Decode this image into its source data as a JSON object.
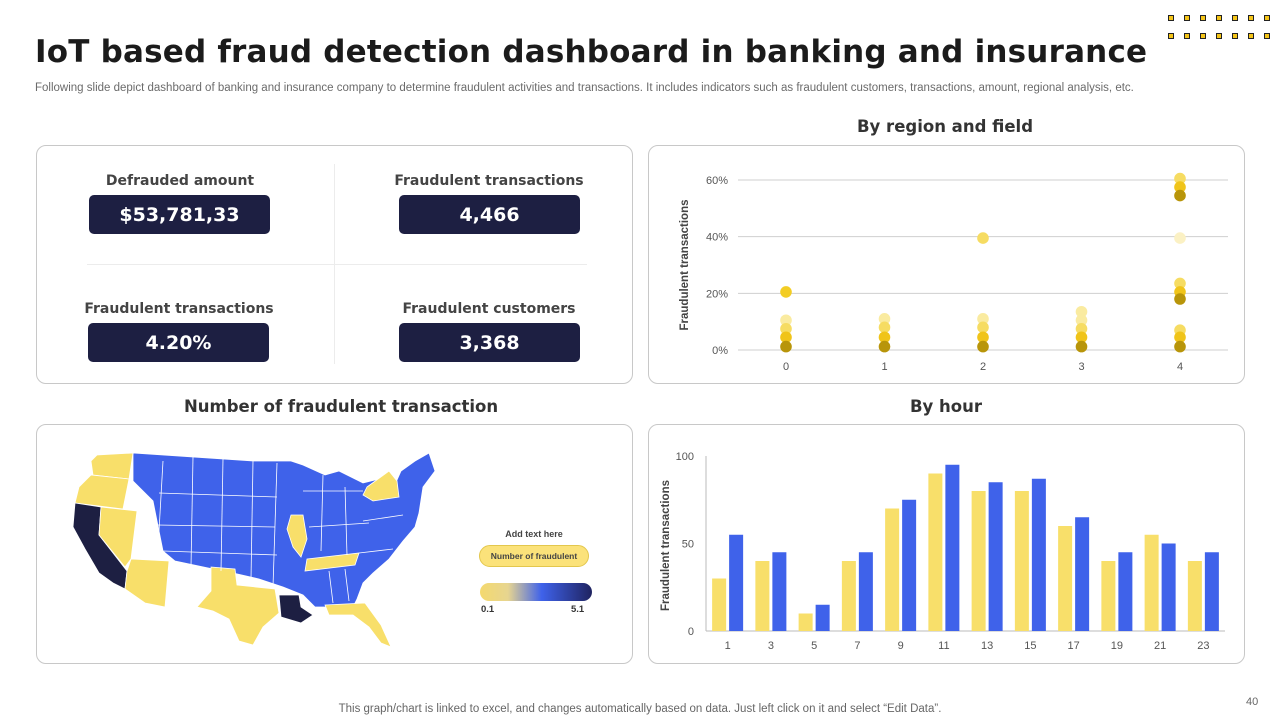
{
  "header": {
    "title": "IoT based fraud detection dashboard in banking and insurance",
    "subtitle": "Following slide depict dashboard of banking and insurance company to determine fraudulent activities and transactions. It includes indicators such as fraudulent customers, transactions, amount, regional analysis, etc."
  },
  "kpis": [
    {
      "label": "Defrauded amount",
      "value": "$53,781,33"
    },
    {
      "label": "Fraudulent transactions",
      "value": "4,466"
    },
    {
      "label": "Fraudulent transactions",
      "value": "4.20%"
    },
    {
      "label": "Fraudulent customers",
      "value": "3,368"
    }
  ],
  "map_panel": {
    "title": "Number of fraudulent transaction",
    "legend_caption": "Add text here",
    "legend_pill": "Number of fraudulent",
    "legend_min": "0.1",
    "legend_max": "5.1"
  },
  "colors": {
    "navy": "#1d1f42",
    "yellow": "#f8df6a",
    "blue": "#3f62ea",
    "gold_dark": "#b8950a"
  },
  "chart_data": [
    {
      "type": "scatter",
      "title": "By region and field",
      "xlabel": "",
      "ylabel": "Fraudulent transactions",
      "x_ticks": [
        "0",
        "1",
        "2",
        "3",
        "4"
      ],
      "y_ticks": [
        "0%",
        "20%",
        "40%",
        "60%"
      ],
      "xlim": [
        0,
        4
      ],
      "ylim": [
        0,
        60
      ],
      "grid": true,
      "points": [
        {
          "x": 0,
          "y": 20.5,
          "c": "#f3cd24"
        },
        {
          "x": 0,
          "y": 10.5,
          "c": "#faeba0"
        },
        {
          "x": 0,
          "y": 7.5,
          "c": "#f6dc62"
        },
        {
          "x": 0,
          "y": 4.5,
          "c": "#f0c419"
        },
        {
          "x": 0,
          "y": 1.2,
          "c": "#b8950a"
        },
        {
          "x": 1,
          "y": 11,
          "c": "#faeba0"
        },
        {
          "x": 1,
          "y": 8,
          "c": "#f6dc62"
        },
        {
          "x": 1,
          "y": 4.5,
          "c": "#f0c419"
        },
        {
          "x": 1,
          "y": 1.2,
          "c": "#b8950a"
        },
        {
          "x": 2,
          "y": 39.5,
          "c": "#f6dc62"
        },
        {
          "x": 2,
          "y": 11,
          "c": "#faeba0"
        },
        {
          "x": 2,
          "y": 8,
          "c": "#f6dc62"
        },
        {
          "x": 2,
          "y": 4.5,
          "c": "#f0c419"
        },
        {
          "x": 2,
          "y": 1.2,
          "c": "#b8950a"
        },
        {
          "x": 3,
          "y": 13.5,
          "c": "#faeba0"
        },
        {
          "x": 3,
          "y": 10.5,
          "c": "#faeba0"
        },
        {
          "x": 3,
          "y": 7.5,
          "c": "#f6dc62"
        },
        {
          "x": 3,
          "y": 4.5,
          "c": "#f0c419"
        },
        {
          "x": 3,
          "y": 1.2,
          "c": "#b8950a"
        },
        {
          "x": 4,
          "y": 60.5,
          "c": "#f6dc62"
        },
        {
          "x": 4,
          "y": 57.5,
          "c": "#f0c419"
        },
        {
          "x": 4,
          "y": 54.5,
          "c": "#b8950a"
        },
        {
          "x": 4,
          "y": 39.5,
          "c": "#fbf1c4"
        },
        {
          "x": 4,
          "y": 23.5,
          "c": "#f6dc62"
        },
        {
          "x": 4,
          "y": 20.5,
          "c": "#f0c419"
        },
        {
          "x": 4,
          "y": 18,
          "c": "#b8950a"
        },
        {
          "x": 4,
          "y": 7,
          "c": "#f6dc62"
        },
        {
          "x": 4,
          "y": 4.5,
          "c": "#f0c419"
        },
        {
          "x": 4,
          "y": 1.2,
          "c": "#b8950a"
        }
      ]
    },
    {
      "type": "bar",
      "title": "By hour",
      "xlabel": "",
      "ylabel": "Fraudulent transactions",
      "categories": [
        "1",
        "3",
        "5",
        "7",
        "9",
        "11",
        "13",
        "15",
        "17",
        "19",
        "21",
        "23"
      ],
      "y_ticks": [
        "0",
        "50",
        "100"
      ],
      "ylim": [
        0,
        100
      ],
      "series": [
        {
          "values": [
            30,
            40,
            10,
            40,
            70,
            90,
            80,
            80,
            60,
            40,
            55,
            40
          ],
          "color": "#f8df6a"
        },
        {
          "values": [
            55,
            45,
            15,
            45,
            75,
            95,
            85,
            87,
            65,
            45,
            50,
            45
          ],
          "color": "#3f62ea"
        }
      ]
    }
  ],
  "footer": {
    "note": "This graph/chart is linked to excel, and changes automatically based on data. Just left click on it and select “Edit Data”.",
    "page_number": "40"
  }
}
